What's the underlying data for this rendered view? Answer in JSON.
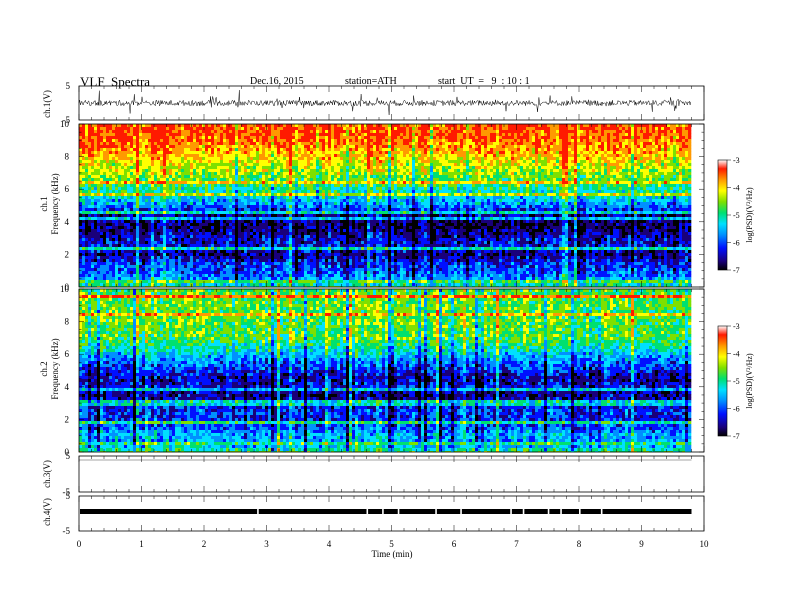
{
  "header": {
    "title": "VLF  Spectra",
    "date": "Dec.16, 2015",
    "station": "station=ATH",
    "start": "start  UT  =   9  : 10 : 1"
  },
  "chart_data": [
    {
      "type": "line",
      "panel": "ch1-waveform",
      "ylabel": "ch.1(V)",
      "ylim": [
        -5,
        5
      ],
      "yticks": [
        "5",
        "-5"
      ],
      "xlim": [
        0,
        10
      ],
      "x_end": 9.8,
      "series": [
        {
          "baseline": 0,
          "amplitude_typical": 1.2,
          "color": "#000000"
        }
      ]
    },
    {
      "type": "heatmap",
      "panel": "ch1-spectrogram",
      "ylabel": [
        "ch.1",
        "Frequency  (kHz)"
      ],
      "ylim": [
        0,
        10
      ],
      "yticks": [
        "0",
        "2",
        "4",
        "6",
        "8",
        "10"
      ],
      "xlim": [
        0,
        10
      ],
      "x_end": 9.8,
      "colorbar": {
        "label": "log(PSD)(V²/Hz)",
        "range": [
          -7,
          -3
        ],
        "ticks": [
          "-3",
          "-4",
          "-5",
          "-6",
          "-7"
        ]
      },
      "profile_freq_khz": [
        0,
        0.5,
        1,
        1.5,
        2,
        2.5,
        3,
        3.5,
        4,
        4.5,
        5,
        5.5,
        6,
        6.5,
        7,
        7.5,
        8,
        8.5,
        9,
        9.5,
        10
      ],
      "profile_logpsd": [
        -4.8,
        -5.5,
        -5.8,
        -6.0,
        -6.4,
        -6.1,
        -6.2,
        -6.5,
        -6.5,
        -6.3,
        -5.6,
        -5.2,
        -4.9,
        -4.6,
        -4.3,
        -4.1,
        -3.8,
        -3.6,
        -3.4,
        -3.3,
        -3.3
      ]
    },
    {
      "type": "heatmap",
      "panel": "ch2-spectrogram",
      "ylabel": [
        "ch.2",
        "Frequency  (kHz)"
      ],
      "ylim": [
        0,
        10
      ],
      "yticks": [
        "0",
        "2",
        "4",
        "6",
        "8",
        "10"
      ],
      "xlim": [
        0,
        10
      ],
      "x_end": 9.8,
      "colorbar": {
        "label": "log(PSD)(V²/Hz)",
        "range": [
          -7,
          -3
        ],
        "ticks": [
          "-3",
          "-4",
          "-5",
          "-6",
          "-7"
        ]
      },
      "profile_freq_khz": [
        0,
        0.5,
        1,
        1.5,
        2,
        2.5,
        3,
        3.5,
        4,
        4.5,
        5,
        5.5,
        6,
        6.5,
        7,
        7.5,
        8,
        8.5,
        9,
        9.5,
        10
      ],
      "profile_logpsd": [
        -4.7,
        -5.6,
        -5.4,
        -5.8,
        -6.0,
        -5.9,
        -6.2,
        -6.4,
        -6.1,
        -6.3,
        -6.0,
        -5.7,
        -5.3,
        -4.9,
        -4.6,
        -4.6,
        -4.5,
        -4.6,
        -4.5,
        -4.6,
        -4.6
      ]
    },
    {
      "type": "line",
      "panel": "ch3-waveform",
      "ylabel": "ch.3(V)",
      "ylim": [
        -5,
        5
      ],
      "yticks": [
        "5",
        "-5"
      ],
      "xlim": [
        0,
        10
      ],
      "series": [
        {
          "baseline": 5,
          "color": "#000000"
        }
      ]
    },
    {
      "type": "line",
      "panel": "ch4-waveform",
      "ylabel": "ch.4(V)",
      "ylim": [
        -5,
        5
      ],
      "yticks": [
        "5",
        "-5"
      ],
      "xlim": [
        0,
        10
      ],
      "x_end": 9.8,
      "series": [
        {
          "baseline": 0,
          "color": "#000000"
        }
      ]
    }
  ],
  "x_axis": {
    "xlabel": "Time  (min)",
    "ticks": [
      "0",
      "1",
      "2",
      "3",
      "4",
      "5",
      "6",
      "7",
      "8",
      "9",
      "10"
    ],
    "range": [
      0,
      10
    ]
  },
  "colors": {
    "colormap": [
      "#000000",
      "#1a007a",
      "#0010ff",
      "#0090ff",
      "#00e0ff",
      "#00e070",
      "#7ee000",
      "#ffff00",
      "#ff9900",
      "#ff1a00",
      "#ffffff"
    ]
  }
}
